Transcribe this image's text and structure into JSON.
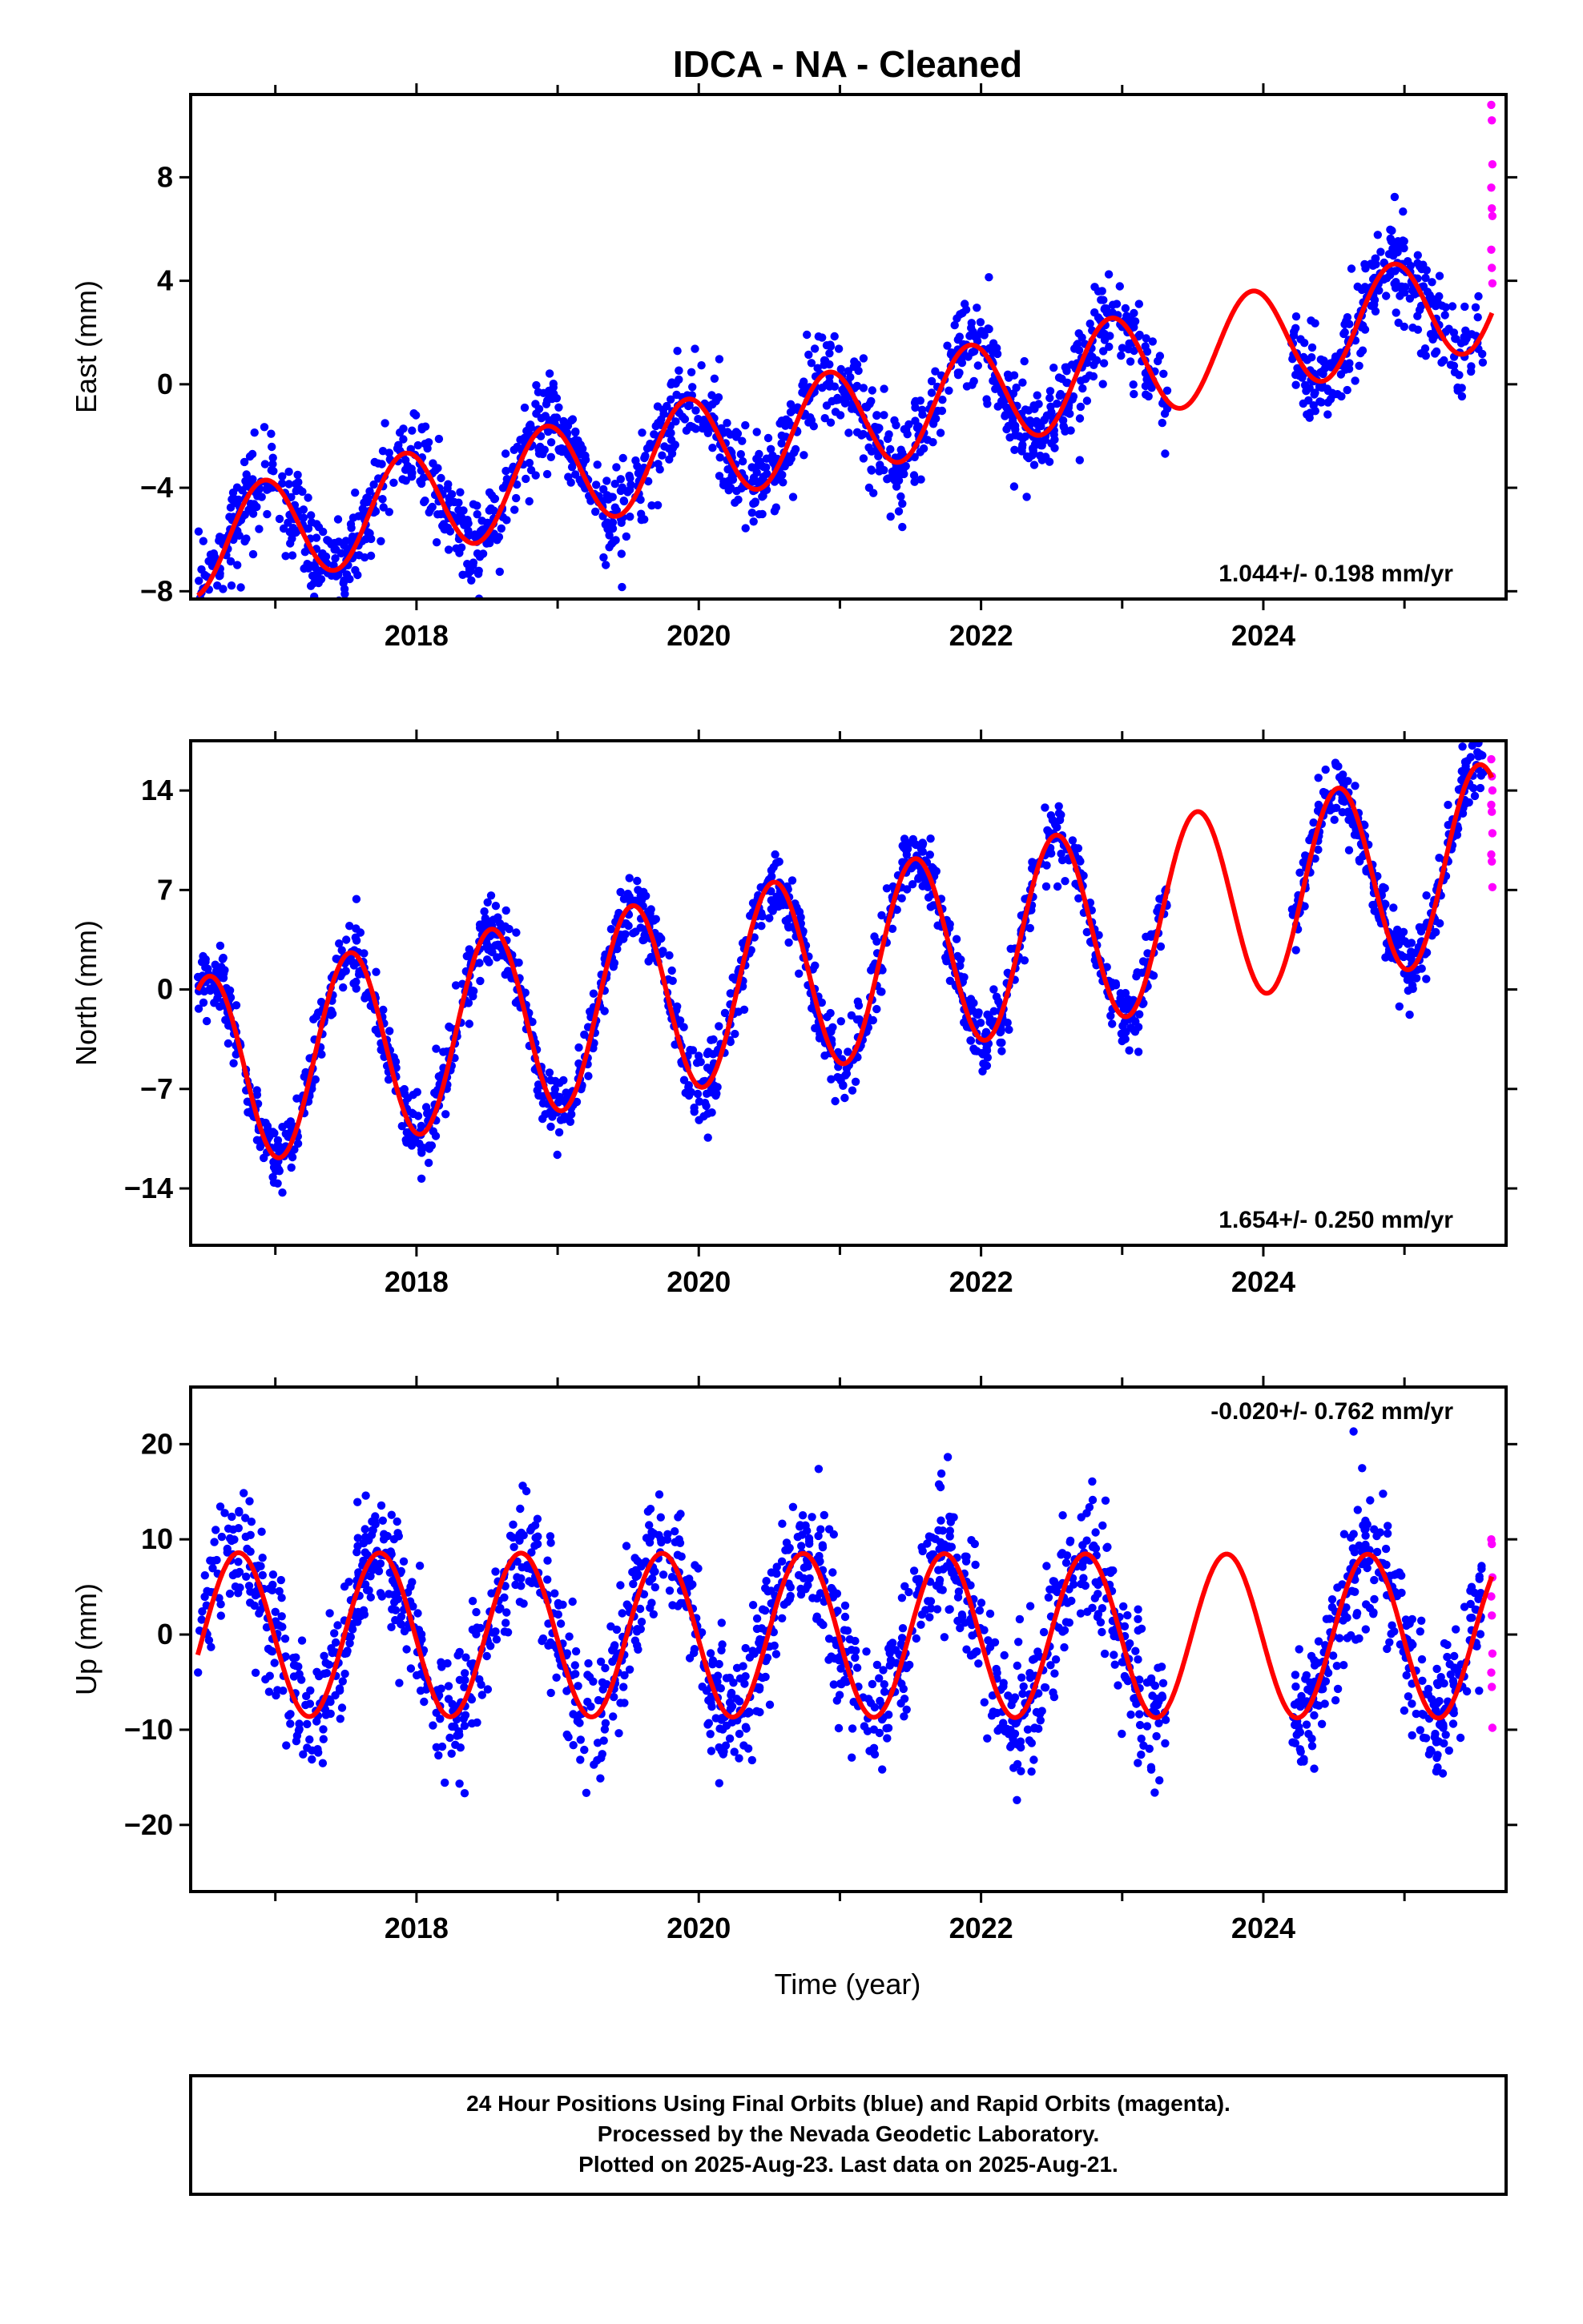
{
  "title": "IDCA  - NA - Cleaned",
  "xlabel": "Time (year)",
  "footer": {
    "line1": "24 Hour Positions Using Final Orbits (blue) and Rapid Orbits (magenta).",
    "line2": "Processed by the Nevada Geodetic Laboratory.",
    "line3": "Plotted on 2025-Aug-23. Last data on 2025-Aug-21."
  },
  "colors": {
    "final": "#0000ff",
    "rapid": "#ff00ff",
    "model": "#ff0000",
    "frame": "#000000"
  },
  "chart_data": [
    {
      "type": "scatter",
      "panel": "east",
      "ylabel": "East (mm)",
      "xlim": [
        2016.4,
        2025.72
      ],
      "ylim": [
        -8.3,
        11.2
      ],
      "xticks": [
        2018,
        2020,
        2022,
        2024
      ],
      "yticks": [
        -8,
        -4,
        0,
        4,
        8
      ],
      "rate_label": "1.044+/- 0.198 mm/yr",
      "rate_position": "bottom-right",
      "data_range": [
        2016.45,
        2025.62
      ],
      "gaps": [
        [
          2023.32,
          2024.2
        ]
      ],
      "model": {
        "start_year": 2016.45,
        "start_value": -6.2,
        "slope": 1.044,
        "amplitude": 2.0,
        "phase_peak": 0.92,
        "period": 1.0
      },
      "scatter_sigma": 0.9,
      "rapid_values": [
        10.8,
        10.2,
        8.5,
        7.6,
        6.8,
        6.5,
        5.2,
        4.5,
        3.9
      ],
      "series": [
        {
          "name": "Final Orbits (blue)",
          "role": "final"
        },
        {
          "name": "Rapid Orbits (magenta)",
          "role": "rapid"
        }
      ]
    },
    {
      "type": "scatter",
      "panel": "north",
      "ylabel": "North (mm)",
      "xlim": [
        2016.4,
        2025.72
      ],
      "ylim": [
        -18.0,
        17.5
      ],
      "xticks": [
        2018,
        2020,
        2022,
        2024
      ],
      "yticks": [
        -14,
        -7,
        0,
        7,
        14
      ],
      "rate_label": "1.654+/- 0.250 mm/yr",
      "rate_position": "bottom-right",
      "data_range": [
        2016.45,
        2025.62
      ],
      "gaps": [
        [
          2023.32,
          2024.2
        ]
      ],
      "model": {
        "start_year": 2016.45,
        "start_value": -6.0,
        "slope": 1.654,
        "amplitude": 6.8,
        "phase_peak": 0.53,
        "period": 1.0
      },
      "scatter_sigma": 1.2,
      "rapid_values": [
        16.2,
        15.0,
        14.0,
        13.0,
        12.5,
        11.0,
        9.5,
        9.0,
        7.2
      ],
      "series": [
        {
          "name": "Final Orbits (blue)",
          "role": "final"
        },
        {
          "name": "Rapid Orbits (magenta)",
          "role": "rapid"
        }
      ]
    },
    {
      "type": "scatter",
      "panel": "up",
      "ylabel": "Up (mm)",
      "xlim": [
        2016.4,
        2025.72
      ],
      "ylim": [
        -27.0,
        26.0
      ],
      "xticks": [
        2018,
        2020,
        2022,
        2024
      ],
      "yticks": [
        -20,
        -10,
        0,
        10,
        20
      ],
      "rate_label": "-0.020+/- 0.762 mm/yr",
      "rate_position": "top-right",
      "data_range": [
        2016.45,
        2025.62
      ],
      "gaps": [
        [
          2023.32,
          2024.2
        ]
      ],
      "model": {
        "start_year": 2016.45,
        "start_value": 0.0,
        "slope": -0.02,
        "amplitude": 8.6,
        "phase_peak": 0.74,
        "period": 1.0
      },
      "scatter_sigma": 3.4,
      "rapid_values": [
        10.0,
        9.5,
        6.0,
        4.0,
        2.0,
        -2.0,
        -4.0,
        -5.5,
        -9.8
      ],
      "series": [
        {
          "name": "Final Orbits (blue)",
          "role": "final"
        },
        {
          "name": "Rapid Orbits (magenta)",
          "role": "rapid"
        }
      ]
    }
  ]
}
